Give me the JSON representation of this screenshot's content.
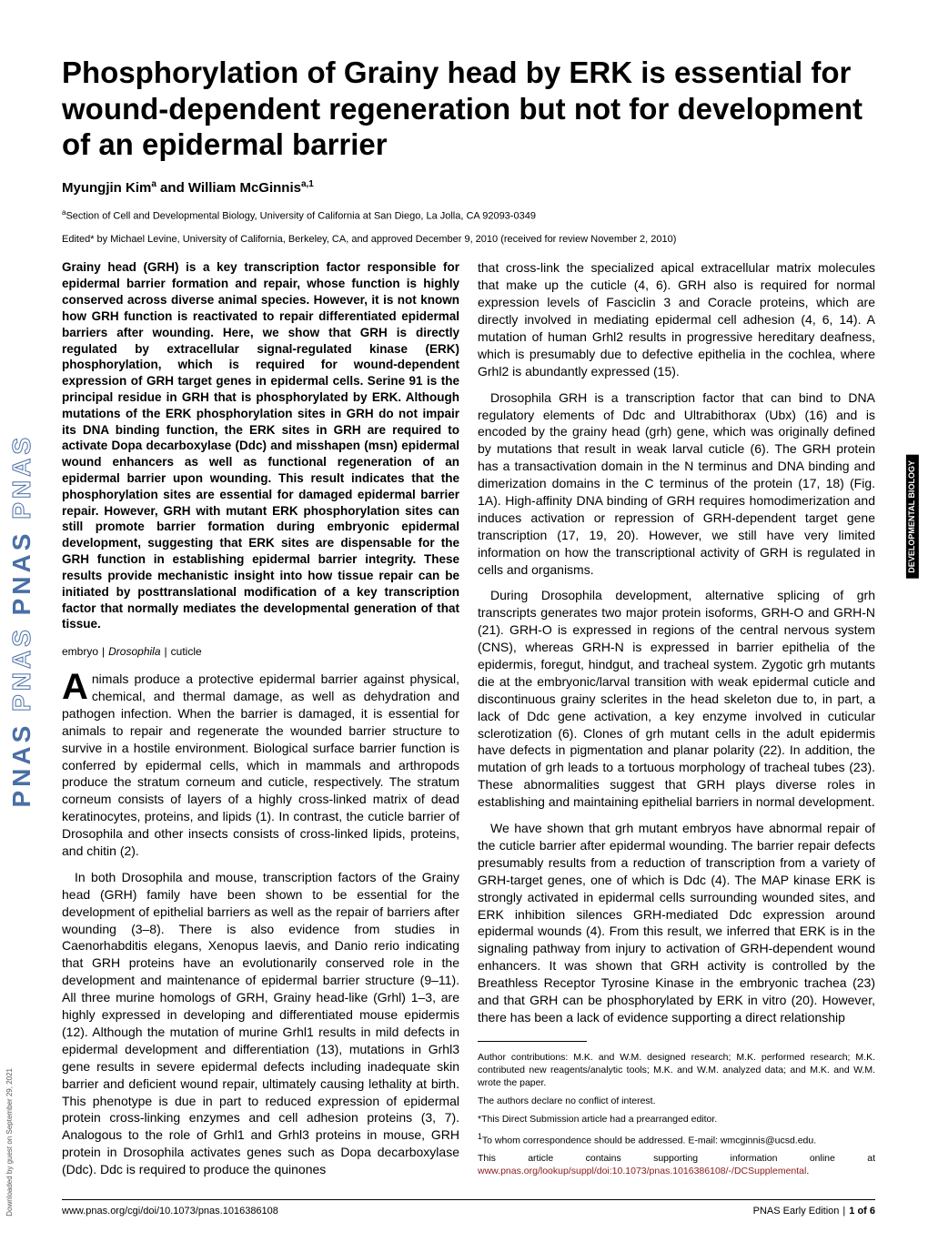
{
  "sidebar": {
    "logo_solid": "PNAS",
    "logo_outline": "PNAS"
  },
  "title": "Phosphorylation of Grainy head by ERK is essential for wound-dependent regeneration but not for development of an epidermal barrier",
  "authors": [
    {
      "name": "Myungjin Kim",
      "super": "a"
    },
    {
      "name": "William McGinnis",
      "super": "a,1"
    }
  ],
  "author_joiner": " and ",
  "affiliation_super": "a",
  "affiliation": "Section of Cell and Developmental Biology, University of California at San Diego, La Jolla, CA 92093-0349",
  "edited": "Edited* by Michael Levine, University of California, Berkeley, CA, and approved December 9, 2010 (received for review November 2, 2010)",
  "abstract": "Grainy head (GRH) is a key transcription factor responsible for epidermal barrier formation and repair, whose function is highly conserved across diverse animal species. However, it is not known how GRH function is reactivated to repair differentiated epidermal barriers after wounding. Here, we show that GRH is directly regulated by extracellular signal-regulated kinase (ERK) phosphorylation, which is required for wound-dependent expression of GRH target genes in epidermal cells. Serine 91 is the principal residue in GRH that is phosphorylated by ERK. Although mutations of the ERK phosphorylation sites in GRH do not impair its DNA binding function, the ERK sites in GRH are required to activate Dopa decarboxylase (Ddc) and misshapen (msn) epidermal wound enhancers as well as functional regeneration of an epidermal barrier upon wounding. This result indicates that the phosphorylation sites are essential for damaged epidermal barrier repair. However, GRH with mutant ERK phosphorylation sites can still promote barrier formation during embryonic epidermal development, suggesting that ERK sites are dispensable for the GRH function in establishing epidermal barrier integrity. These results provide mechanistic insight into how tissue repair can be initiated by posttranslational modification of a key transcription factor that normally mediates the developmental generation of that tissue.",
  "keywords": [
    "embryo",
    "Drosophila",
    "cuticle"
  ],
  "body": {
    "p1_dropcap": "A",
    "p1": "nimals produce a protective epidermal barrier against physical, chemical, and thermal damage, as well as dehydration and pathogen infection. When the barrier is damaged, it is essential for animals to repair and regenerate the wounded barrier structure to survive in a hostile environment. Biological surface barrier function is conferred by epidermal cells, which in mammals and arthropods produce the stratum corneum and cuticle, respectively. The stratum corneum consists of layers of a highly cross-linked matrix of dead keratinocytes, proteins, and lipids (1). In contrast, the cuticle barrier of Drosophila and other insects consists of cross-linked lipids, proteins, and chitin (2).",
    "p2": "In both Drosophila and mouse, transcription factors of the Grainy head (GRH) family have been shown to be essential for the development of epithelial barriers as well as the repair of barriers after wounding (3–8). There is also evidence from studies in Caenorhabditis elegans, Xenopus laevis, and Danio rerio indicating that GRH proteins have an evolutionarily conserved role in the development and maintenance of epidermal barrier structure (9–11). All three murine homologs of GRH, Grainy head-like (Grhl) 1–3, are highly expressed in developing and differentiated mouse epidermis (12). Although the mutation of murine Grhl1 results in mild defects in epidermal development and differentiation (13), mutations in Grhl3 gene results in severe epidermal defects including inadequate skin barrier and deficient wound repair, ultimately causing lethality at birth. This phenotype is due in part to reduced expression of epidermal protein cross-linking enzymes and cell adhesion proteins (3, 7). Analogous to the role of Grhl1 and Grhl3 proteins in mouse, GRH protein in Drosophila activates genes such as Dopa decarboxylase (Ddc). Ddc is required to produce the quinones",
    "p3": "that cross-link the specialized apical extracellular matrix molecules that make up the cuticle (4, 6). GRH also is required for normal expression levels of Fasciclin 3 and Coracle proteins, which are directly involved in mediating epidermal cell adhesion (4, 6, 14). A mutation of human Grhl2 results in progressive hereditary deafness, which is presumably due to defective epithelia in the cochlea, where Grhl2 is abundantly expressed (15).",
    "p4": "Drosophila GRH is a transcription factor that can bind to DNA regulatory elements of Ddc and Ultrabithorax (Ubx) (16) and is encoded by the grainy head (grh) gene, which was originally defined by mutations that result in weak larval cuticle (6). The GRH protein has a transactivation domain in the N terminus and DNA binding and dimerization domains in the C terminus of the protein (17, 18) (Fig. 1A). High-affinity DNA binding of GRH requires homodimerization and induces activation or repression of GRH-dependent target gene transcription (17, 19, 20). However, we still have very limited information on how the transcriptional activity of GRH is regulated in cells and organisms.",
    "p5": "During Drosophila development, alternative splicing of grh transcripts generates two major protein isoforms, GRH-O and GRH-N (21). GRH-O is expressed in regions of the central nervous system (CNS), whereas GRH-N is expressed in barrier epithelia of the epidermis, foregut, hindgut, and tracheal system. Zygotic grh mutants die at the embryonic/larval transition with weak epidermal cuticle and discontinuous grainy sclerites in the head skeleton due to, in part, a lack of Ddc gene activation, a key enzyme involved in cuticular sclerotization (6). Clones of grh mutant cells in the adult epidermis have defects in pigmentation and planar polarity (22). In addition, the mutation of grh leads to a tortuous morphology of tracheal tubes (23). These abnormalities suggest that GRH plays diverse roles in establishing and maintaining epithelial barriers in normal development.",
    "p6": "We have shown that grh mutant embryos have abnormal repair of the cuticle barrier after epidermal wounding. The barrier repair defects presumably results from a reduction of transcription from a variety of GRH-target genes, one of which is Ddc (4). The MAP kinase ERK is strongly activated in epidermal cells surrounding wounded sites, and ERK inhibition silences GRH-mediated Ddc expression around epidermal wounds (4). From this result, we inferred that ERK is in the signaling pathway from injury to activation of GRH-dependent wound enhancers. It was shown that GRH activity is controlled by the Breathless Receptor Tyrosine Kinase in the embryonic trachea (23) and that GRH can be phosphorylated by ERK in vitro (20). However, there has been a lack of evidence supporting a direct relationship"
  },
  "footnotes": {
    "contrib": "Author contributions: M.K. and W.M. designed research; M.K. performed research; M.K. contributed new reagents/analytic tools; M.K. and W.M. analyzed data; and M.K. and W.M. wrote the paper.",
    "conflict": "The authors declare no conflict of interest.",
    "direct": "*This Direct Submission article had a prearranged editor.",
    "corresp_sup": "1",
    "corresp": "To whom correspondence should be addressed. E-mail: wmcginnis@ucsd.edu.",
    "supp_pre": "This article contains supporting information online at ",
    "supp_link": "www.pnas.org/lookup/suppl/doi:10.1073/pnas.1016386108/-/DCSupplemental",
    "supp_post": "."
  },
  "bottom": {
    "left": "www.pnas.org/cgi/doi/10.1073/pnas.1016386108",
    "right_label": "PNAS Early Edition",
    "right_page": "1 of 6"
  },
  "side_label": "DEVELOPMENTAL\nBIOLOGY",
  "download_label": "Downloaded by guest on September 29, 2021"
}
